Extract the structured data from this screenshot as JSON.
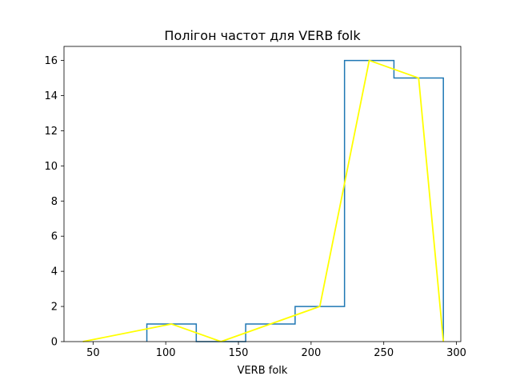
{
  "chart_data": {
    "type": "histogram",
    "title": "Полігон частот для VERB folk",
    "xlabel": "VERB folk",
    "ylabel": "",
    "xlim": [
      30,
      303
    ],
    "ylim": [
      0,
      16.8
    ],
    "xticks": [
      50,
      100,
      150,
      200,
      250,
      300
    ],
    "yticks": [
      0,
      2,
      4,
      6,
      8,
      10,
      12,
      14,
      16
    ],
    "grid": false,
    "histogram": {
      "color": "#1f77b4",
      "bin_edges": [
        87,
        121,
        155,
        189,
        223,
        257,
        291
      ],
      "counts": [
        1,
        0,
        1,
        2,
        16,
        15
      ]
    },
    "polygon": {
      "color": "#ffff00",
      "x": [
        43,
        104,
        138,
        206,
        240,
        274,
        291
      ],
      "y": [
        0,
        1,
        0,
        2,
        16,
        15,
        0
      ]
    }
  }
}
